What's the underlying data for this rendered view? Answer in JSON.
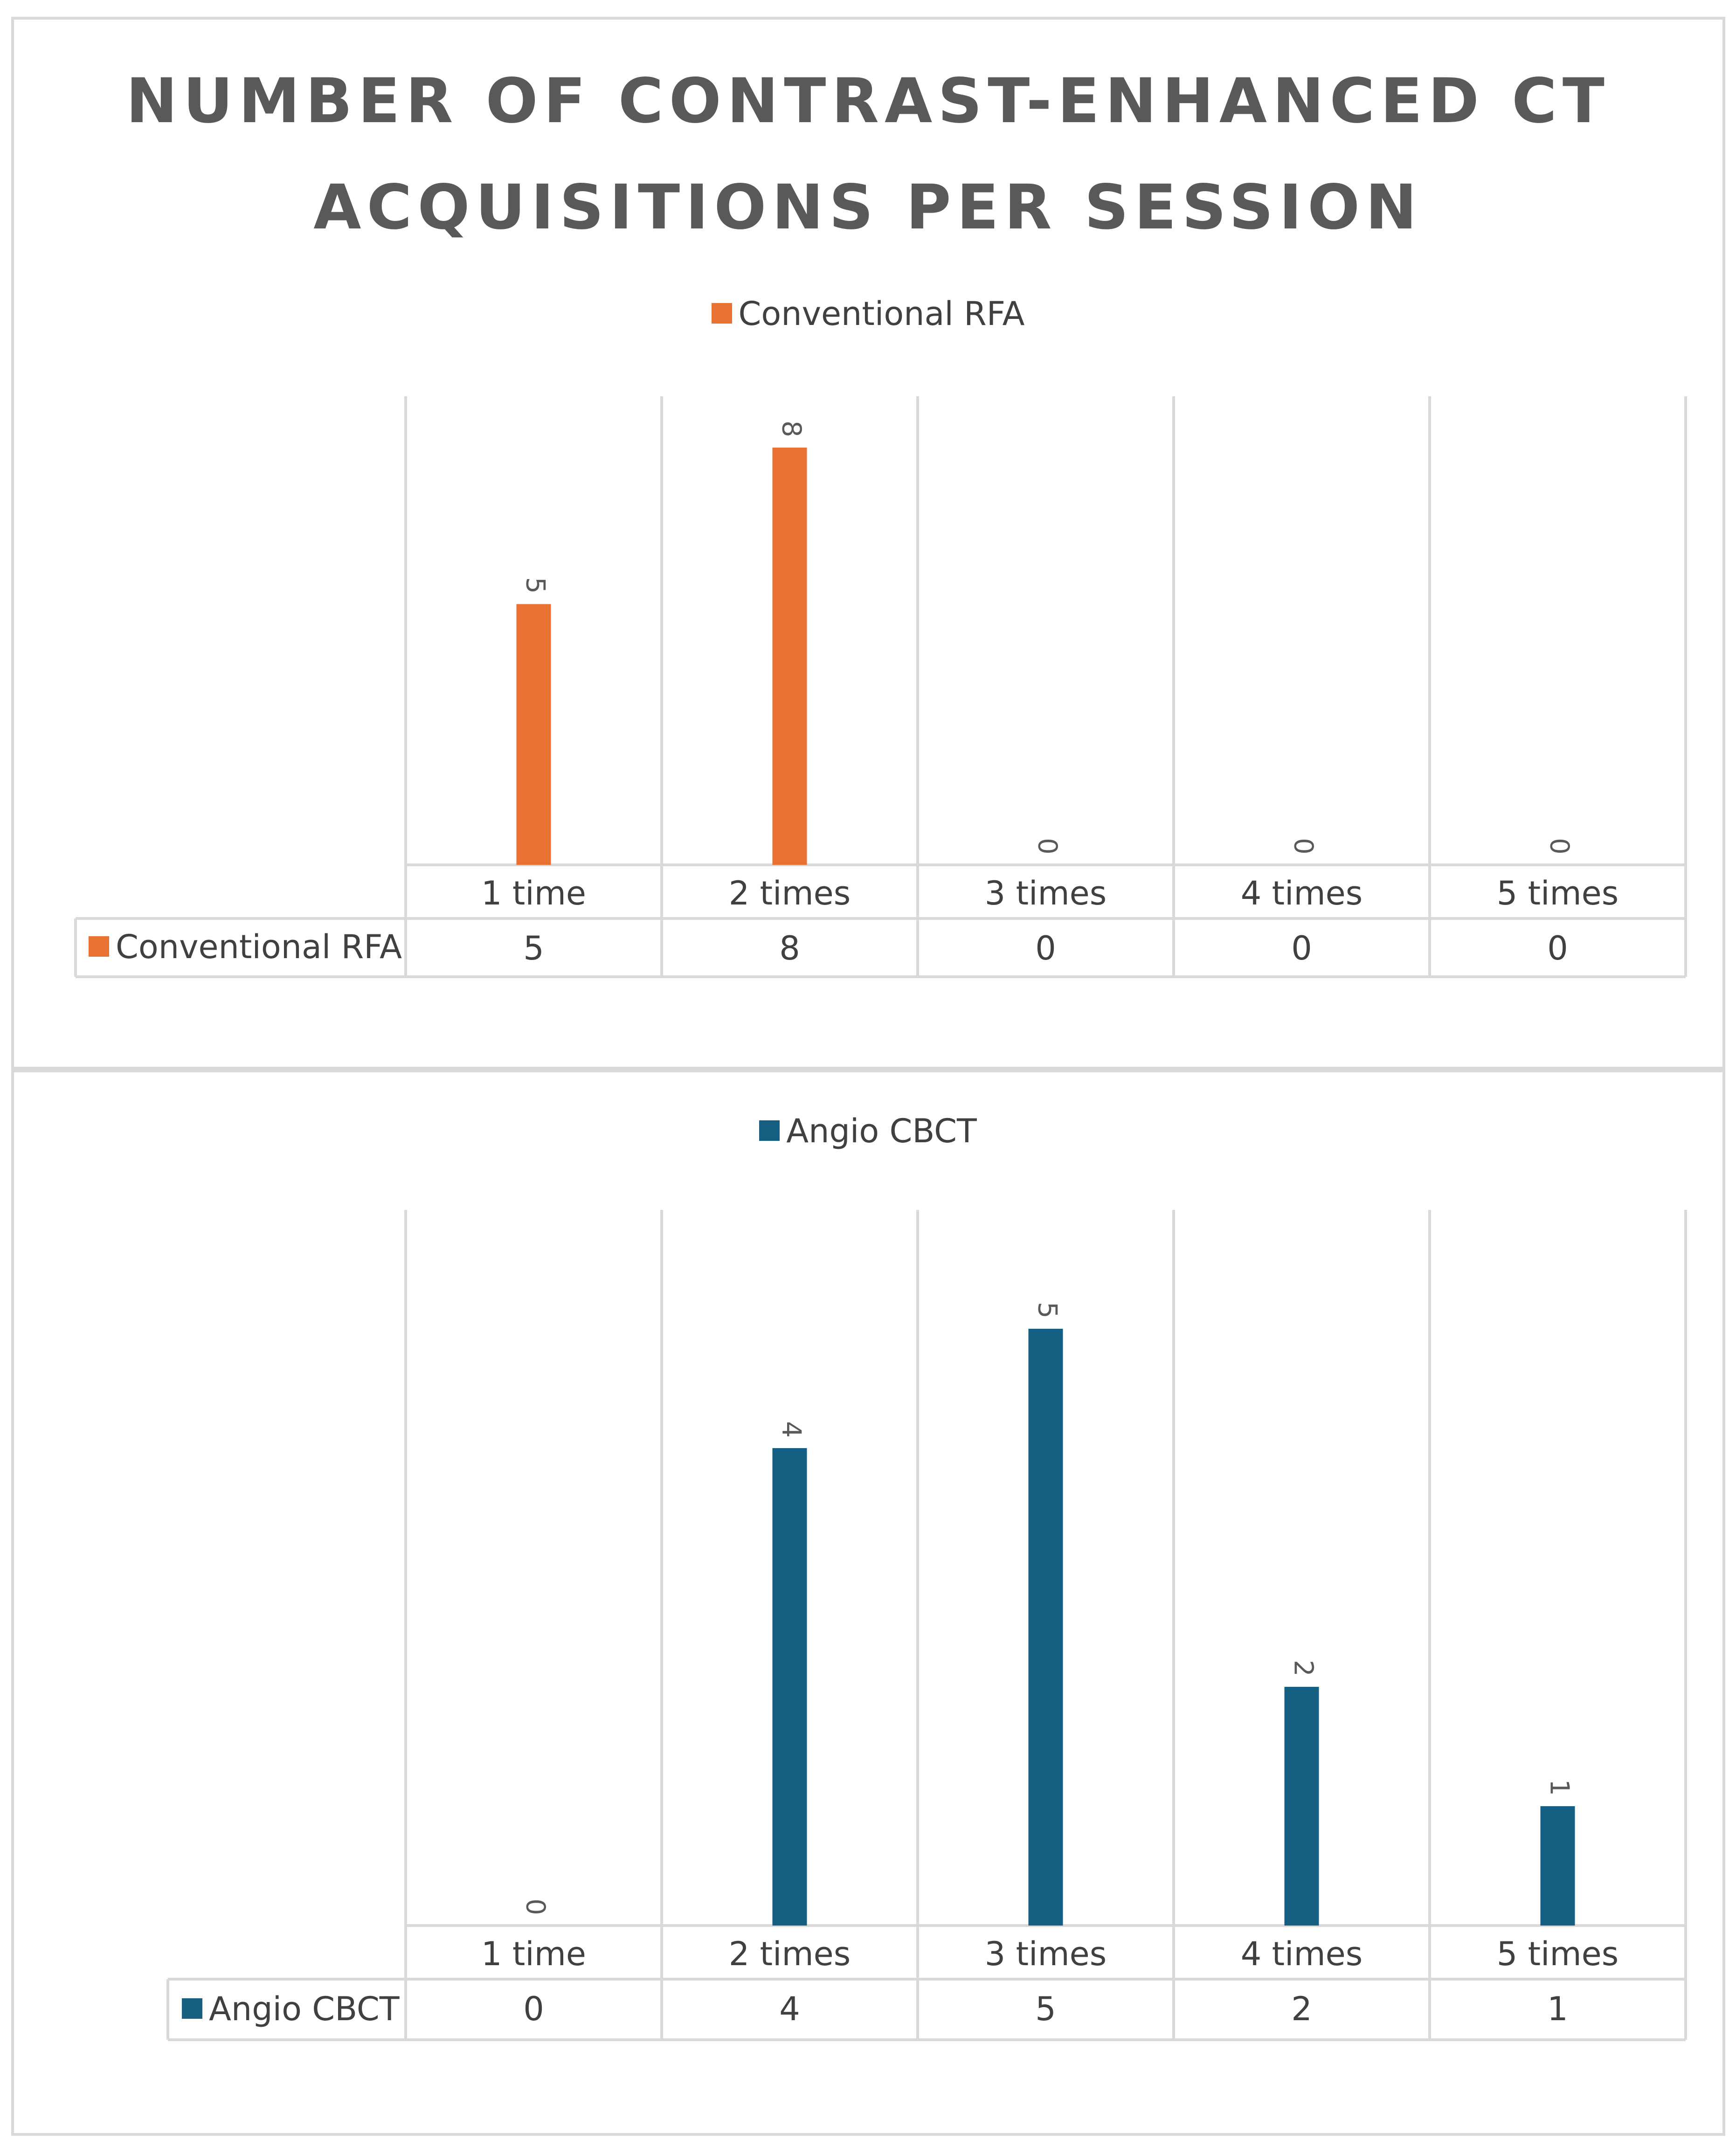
{
  "title_lines": [
    "NUMBER OF CONTRAST-ENHANCED CT",
    "ACQUISITIONS PER SESSION"
  ],
  "chart_data": [
    {
      "type": "bar",
      "title": "NUMBER OF CONTRAST-ENHANCED CT ACQUISITIONS PER SESSION",
      "categories": [
        "1 time",
        "2 times",
        "3 times",
        "4 times",
        "5 times"
      ],
      "series": [
        {
          "name": "Conventional RFA",
          "values": [
            5,
            8,
            0,
            0,
            0
          ],
          "color": "#E97132"
        }
      ],
      "legend": "top-center",
      "data_table": true,
      "grid": "vertical category separators"
    },
    {
      "type": "bar",
      "categories": [
        "1 time",
        "2 times",
        "3 times",
        "4 times",
        "5 times"
      ],
      "series": [
        {
          "name": "Angio CBCT",
          "values": [
            0,
            4,
            5,
            2,
            1
          ],
          "color": "#156082"
        }
      ],
      "legend": "top-center",
      "data_table": true,
      "grid": "vertical category separators"
    }
  ]
}
